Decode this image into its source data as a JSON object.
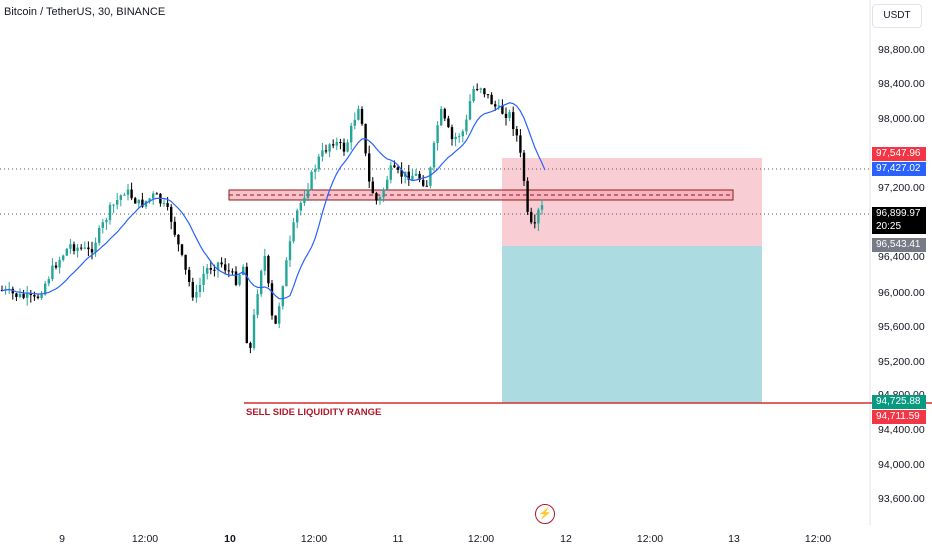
{
  "header": {
    "symbol_title": "Bitcoin / TetherUS, 30, BINANCE",
    "currency_button": "USDT"
  },
  "price_axis": {
    "ticks": [
      "98,800.00",
      "98,400.00",
      "98,000.00",
      "97,200.00",
      "96,400.00",
      "96,000.00",
      "95,600.00",
      "95,200.00",
      "94,800.00",
      "94,400.00",
      "94,000.00",
      "93,600.00"
    ]
  },
  "time_axis": {
    "labels": [
      "9",
      "12:00",
      "10",
      "12:00",
      "11",
      "12:00",
      "12",
      "12:00",
      "13",
      "12:00"
    ]
  },
  "price_tags": {
    "target_top": "97,547.96",
    "entry": "97,427.02",
    "last_price": "96,899.97",
    "countdown": "20:25",
    "stop_level": "96,543.41",
    "tp_level": "94,725.88",
    "liquidity_level": "94,711.59"
  },
  "annotation": "SELL SIDE LIQUIDITY RANGE",
  "colors": {
    "bull": "#26a69a",
    "bear": "#000000",
    "ma": "#2962ff",
    "stop_zone": "#f7c5cc",
    "profit_zone": "#a8dae0",
    "liquidity_line": "#d32f2f"
  },
  "icons": {
    "replay": "lightning-icon"
  }
}
